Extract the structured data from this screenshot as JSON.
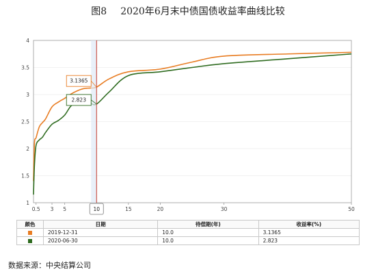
{
  "header": {
    "fig_label": "图8",
    "title": "2020年6月末中债国债收益率曲线比较"
  },
  "chart_data": {
    "type": "line",
    "xlabel": "",
    "ylabel": "",
    "xlim": [
      0.1,
      50
    ],
    "ylim": [
      1,
      4
    ],
    "x_ticks": [
      0.5,
      3,
      5,
      10,
      15,
      20,
      30,
      50
    ],
    "x_tick_labels": [
      "0.5",
      "3",
      "5",
      "10",
      "15",
      "20",
      "30",
      "50"
    ],
    "y_ticks": [
      1,
      1.5,
      2,
      2.5,
      3,
      3.5,
      4
    ],
    "y_tick_labels": [
      "1",
      "1.5",
      "2",
      "2.5",
      "3",
      "3.5",
      "4"
    ],
    "selected_x": 10,
    "selected_x_label": "10",
    "series": [
      {
        "date": "2019-12-31",
        "color": "#e87c22",
        "value_label": "3.1365",
        "x": [
          0.1,
          0.25,
          0.5,
          1,
          1.5,
          2,
          3,
          4,
          5,
          6,
          7,
          8,
          9,
          10,
          12,
          15,
          20,
          25,
          30,
          40,
          50
        ],
        "values": [
          1.4,
          2.1,
          2.2,
          2.4,
          2.48,
          2.55,
          2.77,
          2.86,
          2.93,
          3.01,
          3.07,
          3.11,
          3.12,
          3.1365,
          3.29,
          3.42,
          3.47,
          3.6,
          3.71,
          3.75,
          3.78
        ]
      },
      {
        "date": "2020-06-30",
        "color": "#2e6b1f",
        "value_label": "2.823",
        "x": [
          0.1,
          0.25,
          0.5,
          1,
          1.5,
          2,
          3,
          4,
          5,
          6,
          7,
          8,
          9,
          10,
          12,
          15,
          20,
          25,
          30,
          40,
          50
        ],
        "values": [
          1.15,
          1.7,
          2.06,
          2.16,
          2.21,
          2.3,
          2.45,
          2.52,
          2.62,
          2.79,
          2.84,
          2.85,
          2.84,
          2.823,
          3.05,
          3.35,
          3.42,
          3.5,
          3.57,
          3.66,
          3.75
        ]
      }
    ]
  },
  "table": {
    "headers": [
      "颜色",
      "日期",
      "待偿期(年)",
      "收益率(%)"
    ],
    "rows": [
      {
        "color": "#e87c22",
        "date": "2019-12-31",
        "maturity": "10.0",
        "yield": "3.1365"
      },
      {
        "color": "#2e6b1f",
        "date": "2020-06-30",
        "maturity": "10.0",
        "yield": "2.823"
      }
    ]
  },
  "source": "数据来源：中央结算公司"
}
